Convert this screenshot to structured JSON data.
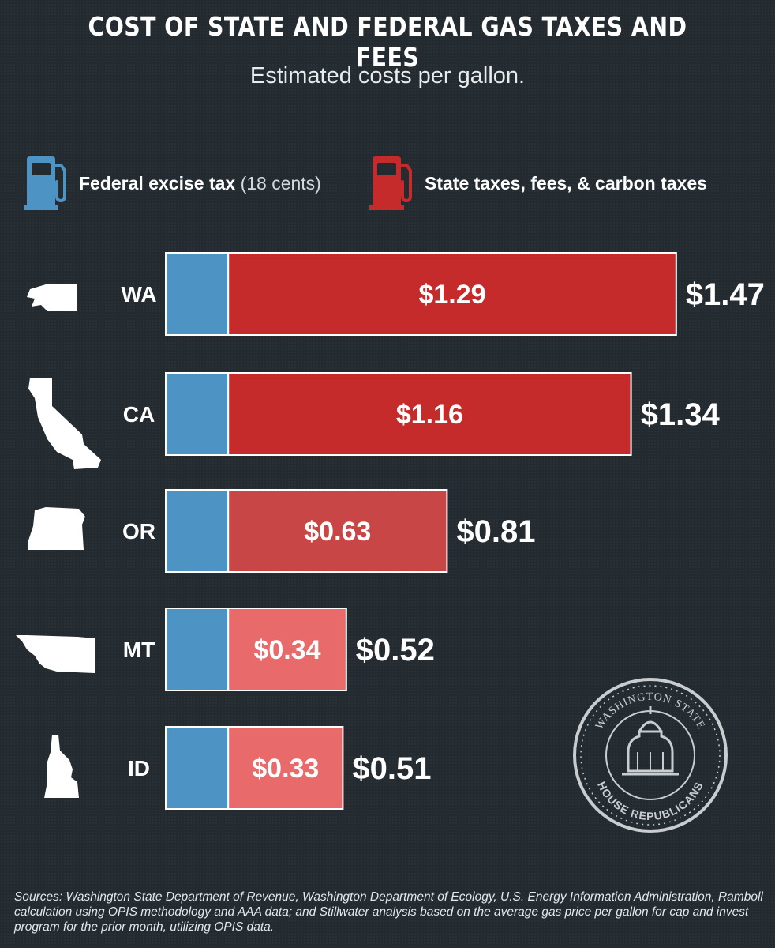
{
  "title": "COST OF STATE AND FEDERAL GAS TAXES AND FEES",
  "subtitle": "Estimated costs per gallon.",
  "legend": {
    "federal_label": "Federal excise tax",
    "federal_note": "(18 cents)",
    "state_label": "State taxes, fees, & carbon taxes",
    "federal_icon": "gas-pump-icon",
    "state_icon": "gas-pump-icon"
  },
  "colors": {
    "federal": "#4d93c4",
    "state_high": "#c62b2b",
    "state_mid": "#c94646",
    "state_low": "#e86a6a",
    "background": "#232b31"
  },
  "chart_data": {
    "type": "bar",
    "orientation": "horizontal",
    "stacked": true,
    "categories": [
      "WA",
      "CA",
      "OR",
      "MT",
      "ID"
    ],
    "series": [
      {
        "name": "Federal excise tax",
        "values": [
          0.18,
          0.18,
          0.18,
          0.18,
          0.18
        ]
      },
      {
        "name": "State taxes, fees, & carbon taxes",
        "values": [
          1.29,
          1.16,
          0.63,
          0.34,
          0.33
        ]
      }
    ],
    "state_labels": [
      "$1.29",
      "$1.16",
      "$0.63",
      "$0.34",
      "$0.33"
    ],
    "total_labels": [
      "$1.47",
      "$1.34",
      "$0.81",
      "$0.52",
      "$0.51"
    ],
    "state_colors": [
      "#c62b2b",
      "#c62b2b",
      "#c94646",
      "#e86a6a",
      "#e86a6a"
    ],
    "state_icons": [
      "washington-state-icon",
      "california-state-icon",
      "oregon-state-icon",
      "montana-state-icon",
      "idaho-state-icon"
    ]
  },
  "seal": {
    "top_text": "WASHINGTON STATE",
    "bottom_text": "HOUSE REPUBLICANS"
  },
  "sources": "Sources: Washington State Department of Revenue, Washington Department of Ecology, U.S. Energy Information Administration, Ramboll calculation using OPIS methodology and AAA data; and Stillwater analysis based on the average gas price per gallon for cap and invest program for the prior month, utilizing OPIS data."
}
